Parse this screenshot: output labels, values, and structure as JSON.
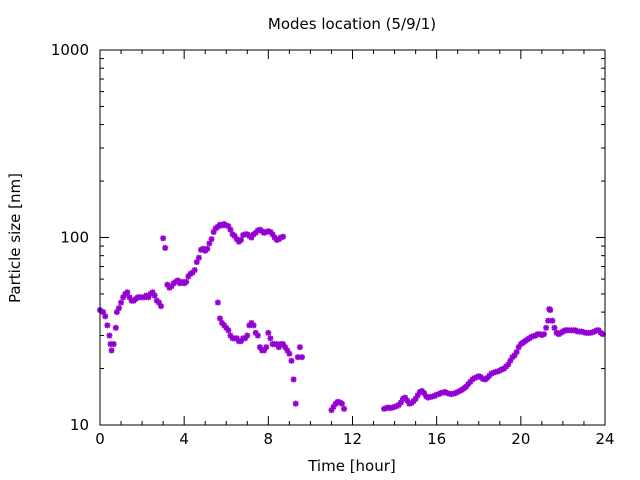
{
  "chart_data": {
    "type": "scatter",
    "title": "Modes location (5/9/1)",
    "xlabel": "Time [hour]",
    "ylabel": "Particle size [nm]",
    "xlim": [
      0,
      24
    ],
    "ylim": [
      10,
      1000
    ],
    "yscale": "log",
    "x_ticks": [
      0,
      4,
      8,
      12,
      16,
      20,
      24
    ],
    "x_tick_labels": [
      "0",
      "4",
      "8",
      "12",
      "16",
      "20",
      "24"
    ],
    "y_ticks": [
      10,
      100,
      1000
    ],
    "y_tick_labels": [
      "10",
      "100",
      "1000"
    ],
    "grid": false,
    "legend": "none",
    "marker_color": "#9400d3",
    "series": [
      {
        "points": [
          [
            0.0,
            41
          ],
          [
            0.15,
            40
          ],
          [
            0.25,
            38
          ],
          [
            0.35,
            34
          ],
          [
            0.45,
            30
          ],
          [
            0.5,
            27
          ],
          [
            0.55,
            25
          ],
          [
            0.65,
            27
          ],
          [
            0.75,
            33
          ],
          [
            0.8,
            40
          ],
          [
            0.9,
            42
          ],
          [
            1.0,
            45
          ],
          [
            1.1,
            48
          ],
          [
            1.2,
            50
          ],
          [
            1.3,
            51
          ],
          [
            1.4,
            48
          ],
          [
            1.5,
            46
          ],
          [
            1.6,
            46
          ],
          [
            1.7,
            47
          ],
          [
            1.8,
            48
          ],
          [
            1.9,
            48
          ],
          [
            2.0,
            48
          ],
          [
            2.1,
            48
          ],
          [
            2.2,
            49
          ],
          [
            2.3,
            48
          ],
          [
            2.4,
            50
          ],
          [
            2.5,
            51
          ],
          [
            2.6,
            49
          ],
          [
            2.7,
            46
          ],
          [
            2.8,
            45
          ],
          [
            2.9,
            43
          ],
          [
            3.0,
            99
          ],
          [
            3.1,
            88
          ],
          [
            3.2,
            56
          ],
          [
            3.3,
            54
          ],
          [
            3.4,
            55
          ],
          [
            3.5,
            57
          ],
          [
            3.6,
            58
          ],
          [
            3.7,
            59
          ],
          [
            3.8,
            57
          ],
          [
            3.9,
            58
          ],
          [
            4.0,
            57
          ],
          [
            4.1,
            58
          ],
          [
            4.2,
            62
          ],
          [
            4.3,
            64
          ],
          [
            4.4,
            65
          ],
          [
            4.5,
            67
          ],
          [
            4.6,
            74
          ],
          [
            4.7,
            78
          ],
          [
            4.8,
            86
          ],
          [
            4.9,
            87
          ],
          [
            5.0,
            85
          ],
          [
            5.1,
            87
          ],
          [
            5.2,
            93
          ],
          [
            5.3,
            98
          ],
          [
            5.4,
            107
          ],
          [
            5.5,
            112
          ],
          [
            5.6,
            114
          ],
          [
            5.7,
            117
          ],
          [
            5.8,
            116
          ],
          [
            5.9,
            118
          ],
          [
            6.0,
            116
          ],
          [
            6.1,
            115
          ],
          [
            6.2,
            110
          ],
          [
            6.3,
            104
          ],
          [
            6.4,
            102
          ],
          [
            6.5,
            98
          ],
          [
            6.6,
            95
          ],
          [
            6.7,
            97
          ],
          [
            6.8,
            103
          ],
          [
            6.9,
            104
          ],
          [
            7.0,
            104
          ],
          [
            7.1,
            102
          ],
          [
            7.2,
            100
          ],
          [
            7.3,
            104
          ],
          [
            7.4,
            106
          ],
          [
            7.5,
            109
          ],
          [
            7.6,
            110
          ],
          [
            7.7,
            108
          ],
          [
            7.8,
            106
          ],
          [
            7.9,
            107
          ],
          [
            8.0,
            108
          ],
          [
            8.1,
            107
          ],
          [
            8.2,
            104
          ],
          [
            8.3,
            100
          ],
          [
            8.4,
            97
          ],
          [
            8.5,
            98
          ],
          [
            8.6,
            100
          ],
          [
            8.7,
            101
          ],
          [
            5.6,
            45
          ],
          [
            5.7,
            37
          ],
          [
            5.8,
            35
          ],
          [
            5.9,
            34
          ],
          [
            6.0,
            33
          ],
          [
            6.1,
            32
          ],
          [
            6.2,
            30
          ],
          [
            6.3,
            29
          ],
          [
            6.4,
            29
          ],
          [
            6.5,
            29
          ],
          [
            6.6,
            28
          ],
          [
            6.7,
            28
          ],
          [
            6.8,
            29
          ],
          [
            6.9,
            29
          ],
          [
            7.0,
            30
          ],
          [
            7.1,
            34
          ],
          [
            7.2,
            35
          ],
          [
            7.3,
            34
          ],
          [
            7.4,
            31
          ],
          [
            7.5,
            30
          ],
          [
            7.6,
            26
          ],
          [
            7.7,
            25
          ],
          [
            7.8,
            25
          ],
          [
            7.9,
            26
          ],
          [
            8.0,
            31
          ],
          [
            8.1,
            29
          ],
          [
            8.2,
            27
          ],
          [
            8.3,
            27
          ],
          [
            8.4,
            27
          ],
          [
            8.5,
            26
          ],
          [
            8.6,
            27
          ],
          [
            8.7,
            27
          ],
          [
            8.8,
            26
          ],
          [
            8.9,
            25
          ],
          [
            9.0,
            24
          ],
          [
            9.1,
            22
          ],
          [
            9.2,
            17.5
          ],
          [
            9.3,
            13
          ],
          [
            9.4,
            23
          ],
          [
            9.5,
            26
          ],
          [
            9.6,
            23
          ],
          [
            11.0,
            12
          ],
          [
            11.1,
            12.5
          ],
          [
            11.2,
            13
          ],
          [
            11.3,
            13.3
          ],
          [
            11.4,
            13.2
          ],
          [
            11.5,
            13
          ],
          [
            11.6,
            12.2
          ],
          [
            13.5,
            12.2
          ],
          [
            13.6,
            12.3
          ],
          [
            13.7,
            12.4
          ],
          [
            13.8,
            12.3
          ],
          [
            13.9,
            12.4
          ],
          [
            14.0,
            12.5
          ],
          [
            14.1,
            12.6
          ],
          [
            14.2,
            12.8
          ],
          [
            14.3,
            13.2
          ],
          [
            14.4,
            13.8
          ],
          [
            14.5,
            14
          ],
          [
            14.6,
            13.5
          ],
          [
            14.7,
            13
          ],
          [
            14.8,
            13.1
          ],
          [
            14.9,
            13.4
          ],
          [
            15.0,
            13.8
          ],
          [
            15.1,
            14.4
          ],
          [
            15.2,
            15
          ],
          [
            15.3,
            15.2
          ],
          [
            15.4,
            14.8
          ],
          [
            15.5,
            14.2
          ],
          [
            15.6,
            14
          ],
          [
            15.7,
            14.1
          ],
          [
            15.8,
            14.2
          ],
          [
            15.9,
            14.3
          ],
          [
            16.0,
            14.5
          ],
          [
            16.1,
            14.6
          ],
          [
            16.2,
            14.8
          ],
          [
            16.3,
            14.9
          ],
          [
            16.4,
            15
          ],
          [
            16.5,
            14.8
          ],
          [
            16.6,
            14.7
          ],
          [
            16.7,
            14.6
          ],
          [
            16.8,
            14.7
          ],
          [
            16.9,
            14.8
          ],
          [
            17.0,
            15
          ],
          [
            17.1,
            15.2
          ],
          [
            17.2,
            15.4
          ],
          [
            17.3,
            15.7
          ],
          [
            17.4,
            16
          ],
          [
            17.5,
            16.5
          ],
          [
            17.6,
            17
          ],
          [
            17.7,
            17.5
          ],
          [
            17.8,
            17.8
          ],
          [
            17.9,
            18
          ],
          [
            18.0,
            18.2
          ],
          [
            18.1,
            18
          ],
          [
            18.2,
            17.6
          ],
          [
            18.3,
            17.5
          ],
          [
            18.4,
            17.8
          ],
          [
            18.5,
            18.3
          ],
          [
            18.6,
            18.8
          ],
          [
            18.7,
            19
          ],
          [
            18.8,
            19.2
          ],
          [
            18.9,
            19.3
          ],
          [
            19.0,
            19.5
          ],
          [
            19.1,
            19.8
          ],
          [
            19.2,
            20
          ],
          [
            19.3,
            20.5
          ],
          [
            19.4,
            21
          ],
          [
            19.5,
            22
          ],
          [
            19.6,
            23
          ],
          [
            19.7,
            23.5
          ],
          [
            19.8,
            24.5
          ],
          [
            19.9,
            26
          ],
          [
            20.0,
            27
          ],
          [
            20.1,
            27.5
          ],
          [
            20.2,
            28
          ],
          [
            20.3,
            28.5
          ],
          [
            20.4,
            29
          ],
          [
            20.5,
            29.5
          ],
          [
            20.6,
            29.8
          ],
          [
            20.7,
            30
          ],
          [
            20.8,
            30.5
          ],
          [
            20.9,
            30.5
          ],
          [
            21.0,
            30.2
          ],
          [
            21.1,
            30.5
          ],
          [
            21.2,
            33
          ],
          [
            21.3,
            36
          ],
          [
            21.35,
            41.5
          ],
          [
            21.4,
            41
          ],
          [
            21.5,
            36
          ],
          [
            21.6,
            33
          ],
          [
            21.7,
            31
          ],
          [
            21.8,
            30.5
          ],
          [
            21.9,
            31
          ],
          [
            22.0,
            31.5
          ],
          [
            22.1,
            32
          ],
          [
            22.2,
            32
          ],
          [
            22.3,
            32
          ],
          [
            22.4,
            32
          ],
          [
            22.5,
            32
          ],
          [
            22.6,
            32
          ],
          [
            22.7,
            31.5
          ],
          [
            22.8,
            31.5
          ],
          [
            22.9,
            31.5
          ],
          [
            23.0,
            31.2
          ],
          [
            23.1,
            31
          ],
          [
            23.2,
            31
          ],
          [
            23.3,
            31
          ],
          [
            23.4,
            31.2
          ],
          [
            23.5,
            31.5
          ],
          [
            23.6,
            32
          ],
          [
            23.7,
            32
          ],
          [
            23.8,
            31
          ],
          [
            23.9,
            30.5
          ]
        ]
      }
    ]
  }
}
